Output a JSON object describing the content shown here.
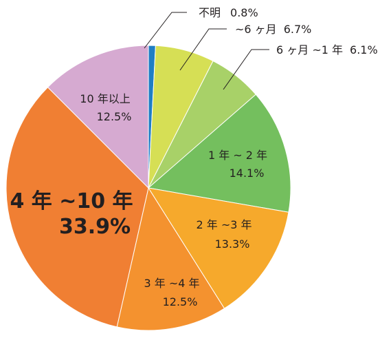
{
  "chart_data": {
    "type": "pie",
    "start": "top",
    "direction": "clockwise",
    "title": "",
    "slices": [
      {
        "name": "不明",
        "pct": 0.8,
        "value_label": "0.8%",
        "color": "#1f7ec4",
        "label_style": "leader"
      },
      {
        "name": "~6 ヶ月",
        "pct": 6.7,
        "value_label": "6.7%",
        "color": "#d6df55",
        "label_style": "leader"
      },
      {
        "name": "6 ヶ月 ~1 年",
        "pct": 6.1,
        "value_label": "6.1%",
        "color": "#a8d168",
        "label_style": "leader"
      },
      {
        "name": "1 年 ~ 2 年",
        "pct": 14.1,
        "value_label": "14.1%",
        "color": "#74bf5e",
        "label_style": "inside"
      },
      {
        "name": "2 年 ~3 年",
        "pct": 13.3,
        "value_label": "13.3%",
        "color": "#f6a92c",
        "label_style": "inside"
      },
      {
        "name": "3 年 ~4 年",
        "pct": 12.5,
        "value_label": "12.5%",
        "color": "#f4922f",
        "label_style": "inside"
      },
      {
        "name": "4 年 ~10 年",
        "pct": 33.9,
        "value_label": "33.9%",
        "color": "#f07f33",
        "label_style": "inside-emphasis"
      },
      {
        "name": "10 年以上",
        "pct": 12.5,
        "value_label": "12.5%",
        "color": "#d6aad1",
        "label_style": "inside"
      }
    ]
  }
}
